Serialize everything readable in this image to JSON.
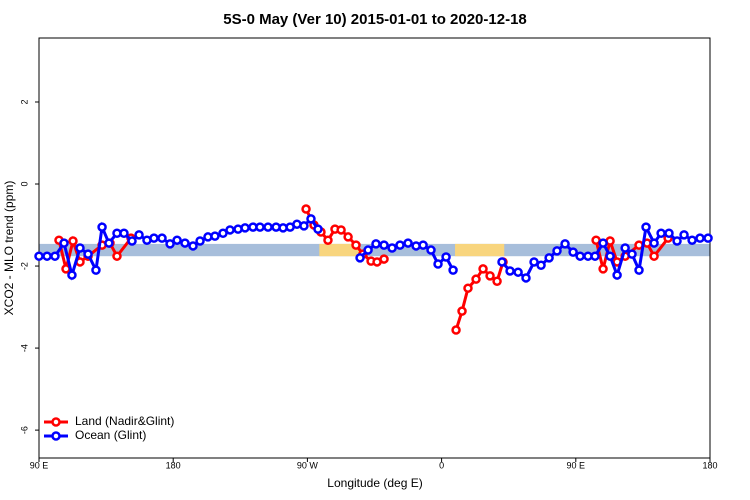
{
  "chart_data": {
    "type": "line",
    "title": "5S-0 May (Ver 10)   2015-01-01 to 2020-12-18",
    "x_label": "Longitude (deg E)",
    "y_label": "XCO2 - MLO trend (ppm)",
    "xlim": [
      90,
      540
    ],
    "ylim": [
      -6.68,
      3.56
    ],
    "xticks": [
      {
        "value": 90,
        "label": "90 E"
      },
      180,
      {
        "value": 270,
        "label": "90 W"
      },
      {
        "value": 360,
        "label": "0"
      },
      {
        "value": 450,
        "label": "90 E"
      },
      {
        "value": 540,
        "label": "180"
      }
    ],
    "yticks": [
      2,
      0,
      -2,
      -4,
      -6
    ],
    "band": {
      "ylim": [
        -1.76,
        -1.46
      ],
      "color": "#a7bedb",
      "land_spans": [
        [
          278,
          305
        ],
        [
          369,
          402
        ]
      ],
      "land_color": "#f8d57e"
    },
    "legend": "bottom-left",
    "series": [
      {
        "name": "Land (Nadir&Glint)",
        "color": "#ff0000",
        "x": [
          103.4,
          108.1,
          112.8,
          117.5,
          122.9,
          132.3,
          137.6,
          142.3,
          151.7,
          null,
          269.1,
          274.4,
          279.1,
          283.8,
          288.5,
          292.6,
          297.3,
          302.6,
          307.3,
          312.7,
          316.7,
          321.4,
          null,
          369.7,
          373.7,
          377.7,
          383.1,
          387.8,
          392.5,
          397.2,
          401.2,
          null,
          463.6,
          468.3,
          473.0,
          477.7,
          483.1,
          492.4,
          497.8,
          502.5,
          511.9
        ],
        "values": [
          -1.37,
          -2.07,
          -1.39,
          -1.9,
          -1.76,
          -1.49,
          -1.44,
          -1.76,
          -1.32,
          null,
          -0.61,
          -1.0,
          -1.17,
          -1.37,
          -1.1,
          -1.12,
          -1.29,
          -1.49,
          -1.71,
          -1.88,
          -1.9,
          -1.83,
          null,
          -3.56,
          -3.1,
          -2.54,
          -2.32,
          -2.07,
          -2.24,
          -2.37,
          -1.9,
          null,
          -1.37,
          -2.07,
          -1.39,
          -1.9,
          -1.76,
          -1.49,
          -1.44,
          -1.76,
          -1.32
        ]
      },
      {
        "name": "Ocean (Glint)",
        "color": "#0000ff",
        "x": [
          90,
          95.4,
          100.7,
          106.8,
          112.1,
          117.5,
          122.9,
          128.2,
          132.3,
          136.9,
          142.3,
          147.0,
          152.4,
          157.1,
          162.4,
          167.1,
          172.5,
          177.9,
          182.6,
          187.9,
          193.3,
          198.0,
          203.3,
          208.0,
          213.4,
          218.1,
          223.5,
          228.2,
          233.5,
          238.2,
          243.6,
          249.0,
          253.7,
          258.4,
          263.0,
          267.7,
          272.4,
          277.1,
          null,
          305.3,
          310.7,
          316.0,
          321.4,
          326.8,
          332.1,
          337.5,
          342.9,
          347.6,
          352.9,
          357.6,
          363.0,
          367.7,
          null,
          400.5,
          405.9,
          411.3,
          416.6,
          422.0,
          426.7,
          432.1,
          437.4,
          442.8,
          448.2,
          452.9,
          458.2,
          462.9,
          468.3,
          473.0,
          477.7,
          483.1,
          487.7,
          492.4,
          497.1,
          502.5,
          507.2,
          512.5,
          517.9,
          522.6,
          528.0,
          533.3,
          538.7
        ],
        "values": [
          -1.76,
          -1.76,
          -1.76,
          -1.44,
          -2.22,
          -1.56,
          -1.71,
          -2.1,
          -1.05,
          -1.44,
          -1.2,
          -1.2,
          -1.39,
          -1.24,
          -1.37,
          -1.32,
          -1.32,
          -1.46,
          -1.37,
          -1.44,
          -1.51,
          -1.39,
          -1.29,
          -1.27,
          -1.2,
          -1.12,
          -1.1,
          -1.07,
          -1.05,
          -1.05,
          -1.05,
          -1.05,
          -1.07,
          -1.05,
          -0.98,
          -1.02,
          -0.85,
          -1.1,
          null,
          -1.8,
          -1.61,
          -1.46,
          -1.49,
          -1.56,
          -1.49,
          -1.44,
          -1.51,
          -1.49,
          -1.61,
          -1.95,
          -1.78,
          -2.1,
          null,
          -1.9,
          -2.12,
          -2.15,
          -2.29,
          -1.9,
          -1.98,
          -1.8,
          -1.63,
          -1.46,
          -1.66,
          -1.76,
          -1.76,
          -1.76,
          -1.44,
          -1.76,
          -2.22,
          -1.56,
          -1.71,
          -2.1,
          -1.05,
          -1.44,
          -1.2,
          -1.2,
          -1.39,
          -1.24,
          -1.37,
          -1.32,
          -1.32
        ]
      }
    ]
  }
}
